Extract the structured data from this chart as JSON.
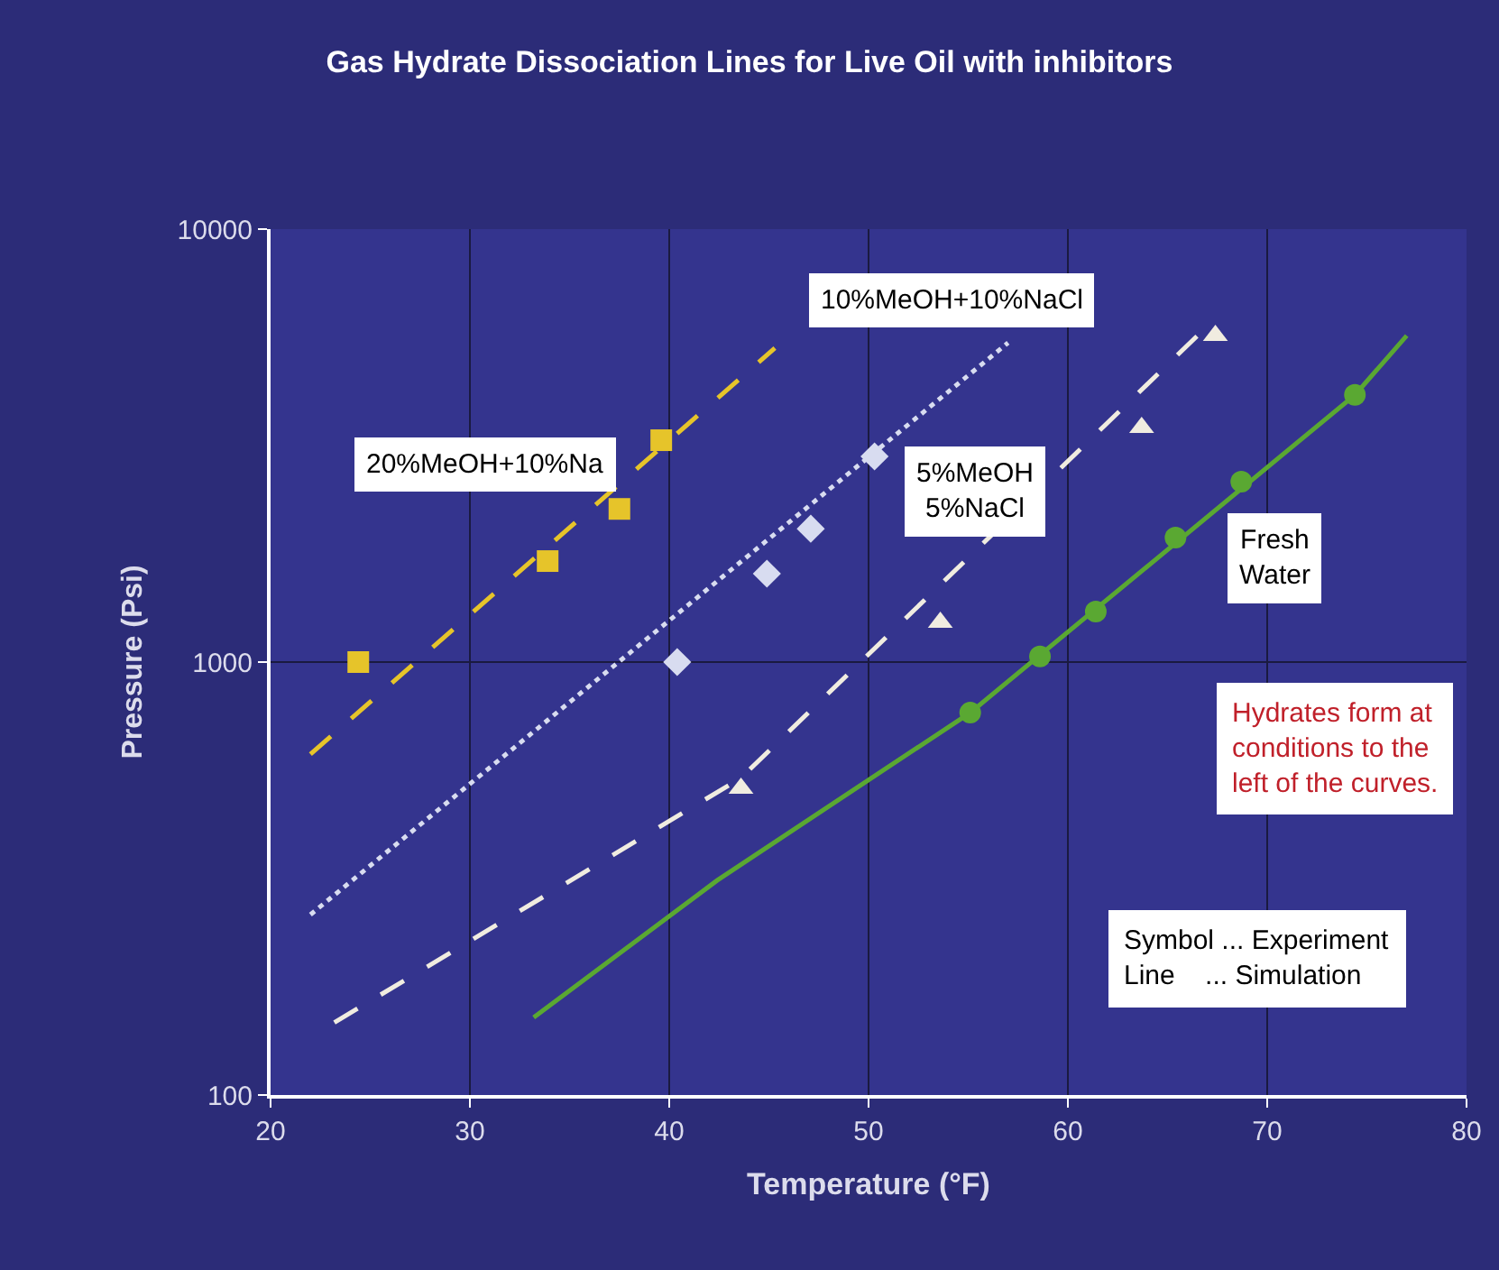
{
  "chart_data": {
    "type": "line",
    "title": "Gas Hydrate Dissociation Lines for Live Oil with inhibitors",
    "xlabel": "Temperature (°F)",
    "ylabel": "Pressure (Psi)",
    "xlim": [
      20,
      80
    ],
    "xticks": [
      20,
      30,
      40,
      50,
      60,
      70,
      80
    ],
    "ylim": [
      100,
      10000
    ],
    "yticks": [
      100,
      1000,
      10000
    ],
    "log": "y",
    "grid": true,
    "legend": false,
    "series": [
      {
        "name": "20%MeOH+10%Na",
        "line_style": "dashed",
        "color": "#e6c42a",
        "x": [
          22.0,
          45.3
        ],
        "values": [
          613,
          5310
        ]
      },
      {
        "name": "10%MeOH+10%NaCl",
        "line_style": "dotted",
        "color": "#d8dcf0",
        "x": [
          22.0,
          57.0
        ],
        "values": [
          261,
          5464
        ]
      },
      {
        "name": "5%MeOH\n5%NaCl",
        "line_style": "dashed",
        "color": "#f0ece0",
        "x": [
          23.2,
          43.6,
          66.5
        ],
        "values": [
          147,
          540,
          5675
        ]
      },
      {
        "name": "Fresh\nWater",
        "line_style": "solid",
        "color": "#5aa832",
        "x": [
          33.2,
          42.4,
          55.1,
          74.4,
          77.0
        ],
        "values": [
          151,
          313,
          764,
          4140,
          5675
        ]
      },
      {
        "type": "scatter",
        "marker": "square",
        "color": "#e6c42a",
        "x": [
          24.4,
          33.9,
          37.5,
          39.6
        ],
        "values": [
          1000,
          1711,
          2258,
          3254
        ]
      },
      {
        "type": "scatter",
        "marker": "diamond",
        "color": "#d8dcf0",
        "x": [
          40.4,
          44.9,
          47.1,
          50.3
        ],
        "values": [
          1000,
          1600,
          2032,
          2985
        ]
      },
      {
        "type": "scatter",
        "marker": "triangle",
        "color": "#f0ece0",
        "x": [
          43.6,
          53.6,
          63.7,
          67.4
        ],
        "values": [
          511,
          1235,
          3480,
          5675
        ]
      },
      {
        "type": "scatter",
        "marker": "circle",
        "color": "#5aa832",
        "x": [
          55.1,
          58.6,
          61.4,
          65.4,
          68.7,
          74.4
        ],
        "values": [
          764,
          1030,
          1308,
          1939,
          2610,
          4140
        ]
      }
    ],
    "annotations": [
      "Hydrates form at\nconditions to the\nleft of the curves.",
      "Symbol ... Experiment\nLine    ... Simulation"
    ]
  }
}
